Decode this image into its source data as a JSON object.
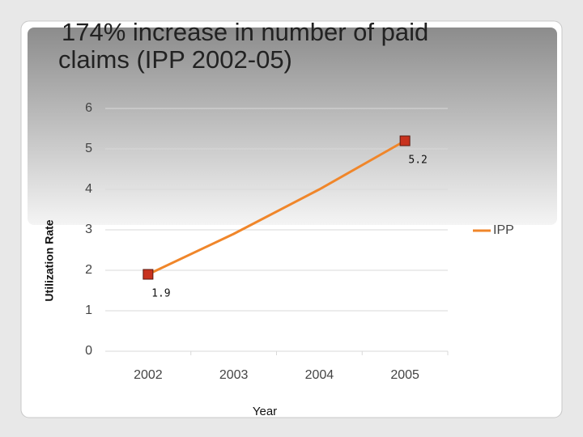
{
  "chart_data": {
    "type": "line",
    "title": "174% increase in number of paid claims (IPP 2002-05)",
    "title_lines": [
      "174% increase in number of paid",
      "claims (IPP 2002-05)"
    ],
    "y_label": "Utilization Rate",
    "x_label": "Year",
    "categories": [
      "2002",
      "2003",
      "2004",
      "2005"
    ],
    "series": [
      {
        "name": "IPP",
        "color": "#f0862a",
        "values": [
          1.9,
          2.9,
          4.0,
          5.2
        ],
        "marker_color": "#c8321e",
        "data_labels": [
          true,
          false,
          false,
          true
        ]
      }
    ],
    "ylim": [
      0,
      6
    ],
    "yticks": [
      0,
      1,
      2,
      3,
      4,
      5,
      6
    ],
    "grid": true,
    "legend": "right"
  }
}
